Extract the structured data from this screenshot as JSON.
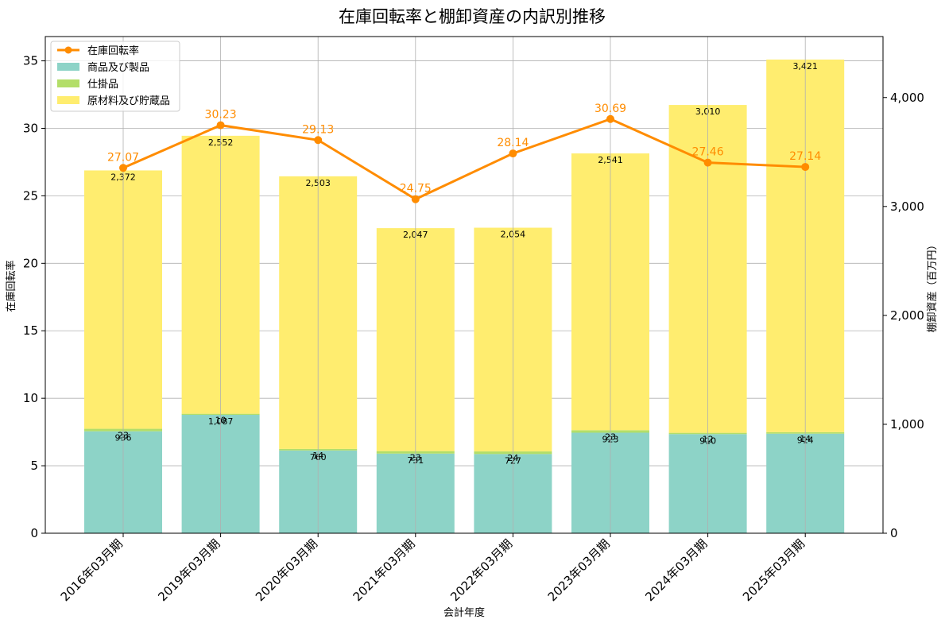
{
  "chart_data": {
    "type": "bar",
    "title": "在庫回転率と棚卸資産の内訳別推移",
    "xlabel": "会計年度",
    "ylabel_left": "在庫回転率",
    "ylabel_right": "棚卸資産（百万円）",
    "categories": [
      "2016年03月期",
      "2019年03月期",
      "2020年03月期",
      "2021年03月期",
      "2022年03月期",
      "2023年03月期",
      "2024年03月期",
      "2025年03月期"
    ],
    "y_left": {
      "min": 0,
      "max": 36.8,
      "ticks": [
        0,
        5,
        10,
        15,
        20,
        25,
        30,
        35
      ],
      "tick_labels": [
        "0",
        "5",
        "10",
        "15",
        "20",
        "25",
        "30",
        "35"
      ]
    },
    "y_right": {
      "min": 0,
      "max": 4560,
      "ticks": [
        0,
        1000,
        2000,
        3000,
        4000
      ],
      "tick_labels": [
        "0",
        "1,000",
        "2,000",
        "3,000",
        "4,000"
      ]
    },
    "grid": true,
    "legend_position": "top-left",
    "line_series": {
      "name": "在庫回転率",
      "color": "#ff8c00",
      "axis": "left",
      "values": [
        27.07,
        30.23,
        29.13,
        24.75,
        28.14,
        30.69,
        27.46,
        27.14
      ],
      "labels": [
        "27.07",
        "30.23",
        "29.13",
        "24.75",
        "28.14",
        "30.69",
        "27.46",
        "27.14"
      ]
    },
    "series": [
      {
        "name": "商品及び製品",
        "color": "#8dd3c7",
        "axis": "right",
        "values": [
          936,
          1087,
          760,
          731,
          727,
          923,
          910,
          914
        ],
        "labels": [
          "936",
          "1,087",
          "760",
          "731",
          "727",
          "923",
          "910",
          "914"
        ]
      },
      {
        "name": "仕掛品",
        "color": "#b3de69",
        "axis": "right",
        "values": [
          23,
          10,
          14,
          23,
          24,
          23,
          12,
          14
        ],
        "labels": [
          "23",
          "10",
          "14",
          "23",
          "24",
          "23",
          "12",
          "14"
        ]
      },
      {
        "name": "原材料及び貯蔵品",
        "color": "#ffed6f",
        "axis": "right",
        "values": [
          2372,
          2552,
          2503,
          2047,
          2054,
          2541,
          3010,
          3421
        ],
        "labels": [
          "2,372",
          "2,552",
          "2,503",
          "2,047",
          "2,054",
          "2,541",
          "3,010",
          "3,421"
        ]
      }
    ]
  }
}
